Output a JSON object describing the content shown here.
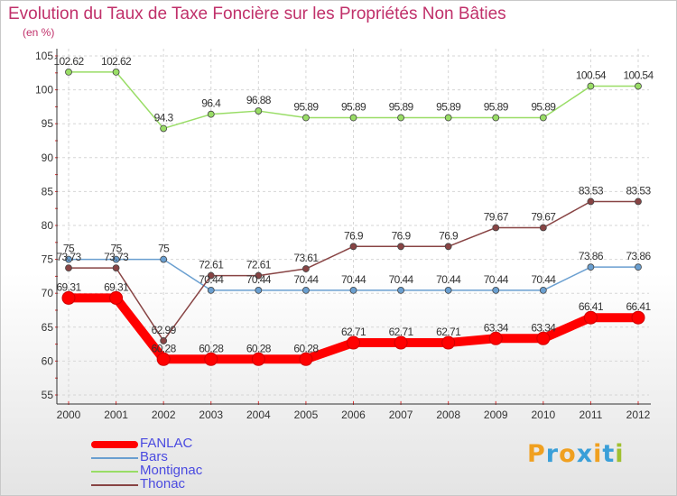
{
  "chart_data": {
    "type": "line",
    "title": "Evolution du Taux de Taxe Foncière sur les Propriétés Non Bâties",
    "subtitle": "(en %)",
    "xlabel": "",
    "ylabel": "(en %)",
    "x": [
      "2000",
      "2001",
      "2002",
      "2003",
      "2004",
      "2005",
      "2006",
      "2007",
      "2008",
      "2009",
      "2010",
      "2011",
      "2012"
    ],
    "ylim": [
      55,
      105
    ],
    "yticks": [
      "55",
      "60",
      "65",
      "70",
      "75",
      "80",
      "85",
      "90",
      "95",
      "100",
      "105"
    ],
    "grid": true,
    "legend_position": "bottom-left",
    "series": [
      {
        "name": "FANLAC",
        "color": "#ff0000",
        "values": [
          69.31,
          69.31,
          60.28,
          60.28,
          60.28,
          60.28,
          62.71,
          62.71,
          62.71,
          63.34,
          63.34,
          66.41,
          66.41
        ],
        "labels": [
          "69.31",
          "69.31",
          "60.28",
          "60.28",
          "60.28",
          "60.28",
          "62.71",
          "62.71",
          "62.71",
          "63.34",
          "63.34",
          "66.41",
          "66.41"
        ]
      },
      {
        "name": "Bars",
        "color": "#6a9fd0",
        "values": [
          75,
          75,
          75,
          70.44,
          70.44,
          70.44,
          70.44,
          70.44,
          70.44,
          70.44,
          70.44,
          73.86,
          73.86
        ],
        "labels": [
          "75",
          "75",
          "75",
          "70.44",
          "70.44",
          "70.44",
          "70.44",
          "70.44",
          "70.44",
          "70.44",
          "70.44",
          "73.86",
          "73.86"
        ]
      },
      {
        "name": "Montignac",
        "color": "#99dd66",
        "values": [
          102.62,
          102.62,
          94.3,
          96.4,
          96.88,
          95.89,
          95.89,
          95.89,
          95.89,
          95.89,
          95.89,
          100.54,
          100.54
        ],
        "labels": [
          "102.62",
          "102.62",
          "94.3",
          "96.4",
          "96.88",
          "95.89",
          "95.89",
          "95.89",
          "95.89",
          "95.89",
          "95.89",
          "100.54",
          "100.54"
        ]
      },
      {
        "name": "Thonac",
        "color": "#884444",
        "values": [
          73.73,
          73.73,
          62.99,
          72.61,
          72.61,
          73.61,
          76.9,
          76.9,
          76.9,
          79.67,
          79.67,
          83.53,
          83.53
        ],
        "labels": [
          "73.73",
          "73.73",
          "62.99",
          "72.61",
          "72.61",
          "73.61",
          "76.9",
          "76.9",
          "76.9",
          "79.67",
          "79.67",
          "83.53",
          "83.53"
        ]
      }
    ]
  },
  "logo": {
    "text": "Proxiti",
    "letters": [
      "P",
      "r",
      "o",
      "x",
      "i",
      "t",
      "i"
    ],
    "colors": [
      "#f0a020",
      "#3a9fd8",
      "#f0a020",
      "#3a9fd8",
      "#f0a020",
      "#3a9fd8",
      "#a0c030"
    ]
  }
}
